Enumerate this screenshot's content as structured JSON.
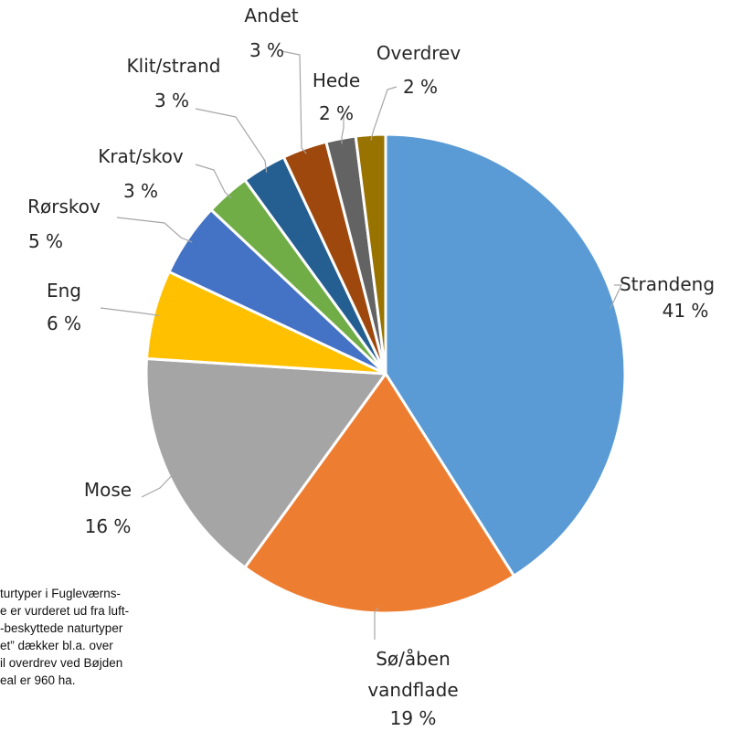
{
  "chart_data": {
    "type": "pie",
    "slices": [
      {
        "label": "Strandeng",
        "value_label": "41 %",
        "value": 41,
        "color": "#5B9BD5"
      },
      {
        "label": "Sø/åben vandflade",
        "value_label": "19 %",
        "value": 19,
        "color": "#ED7D31"
      },
      {
        "label": "Mose",
        "value_label": "16 %",
        "value": 16,
        "color": "#A5A5A5"
      },
      {
        "label": "Eng",
        "value_label": "6 %",
        "value": 6,
        "color": "#FFC000"
      },
      {
        "label": "Rørskov",
        "value_label": "5 %",
        "value": 5,
        "color": "#4472C4"
      },
      {
        "label": "Krat/skov",
        "value_label": "3 %",
        "value": 3,
        "color": "#70AD47"
      },
      {
        "label": "Klit/strand",
        "value_label": "3 %",
        "value": 3,
        "color": "#255E91"
      },
      {
        "label": "Andet",
        "value_label": "3 %",
        "value": 3,
        "color": "#9E480E"
      },
      {
        "label": "Hede",
        "value_label": "2 %",
        "value": 2,
        "color": "#636363"
      },
      {
        "label": "Overdrev",
        "value_label": "2 %",
        "value": 2,
        "color": "#997300"
      }
    ]
  },
  "caption_lines": [
    "turtyper i Fugleværns-",
    "e er vurderet ud fra luft-",
    "-beskyttede naturtyper",
    "et” dækker bl.a. over",
    "il overdrev ved Bøjden",
    "eal er 960 ha."
  ]
}
